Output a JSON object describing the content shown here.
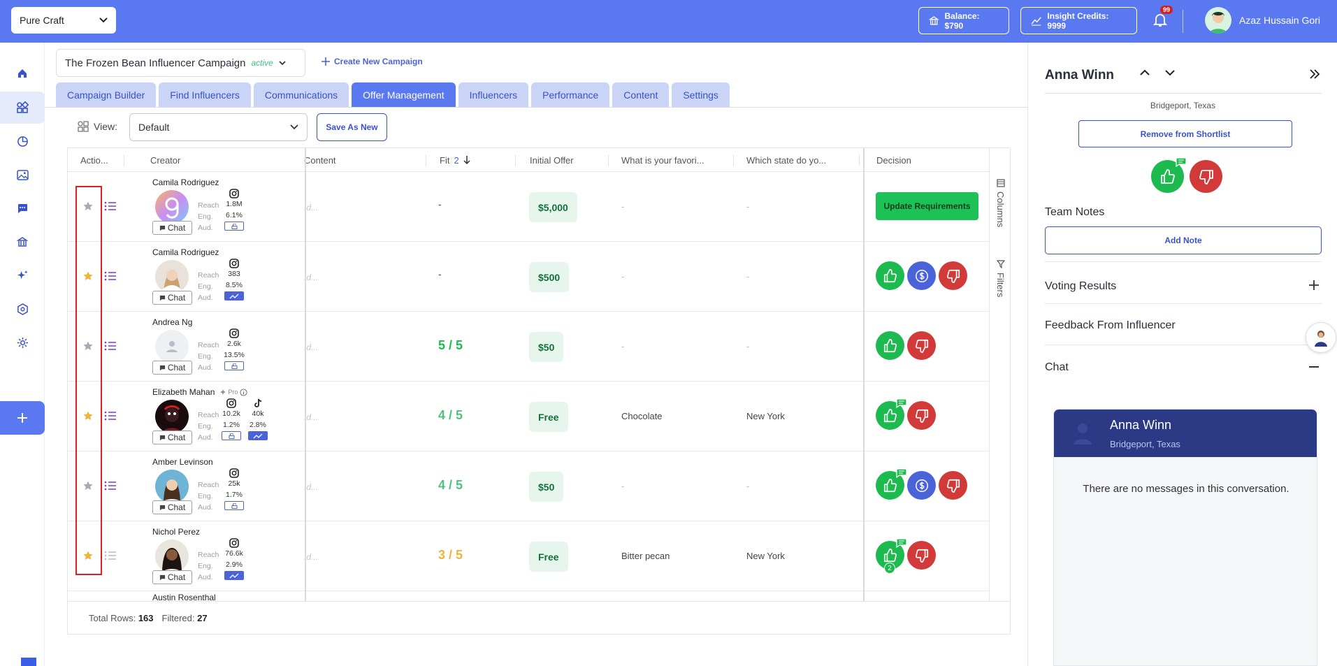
{
  "topbar": {
    "workspace": "Pure Craft",
    "balance": "Balance: $790",
    "insight_credits": "Insight Credits: 9999",
    "notifications": "99",
    "user_name": "Azaz Hussain Gori"
  },
  "campaign": {
    "name": "The Frozen Bean Influencer Campaign",
    "status": "active",
    "create_new": "Create New Campaign"
  },
  "tabs": [
    "Campaign Builder",
    "Find Influencers",
    "Communications",
    "Offer Management",
    "Influencers",
    "Performance",
    "Content",
    "Settings"
  ],
  "active_tab": "Offer Management",
  "view": {
    "label": "View:",
    "value": "Default",
    "save_as_new": "Save As New"
  },
  "table": {
    "headers": {
      "actions": "Actio...",
      "creator": "Creator",
      "content": "Content",
      "fit": "Fit",
      "fit_sort_index": "2",
      "initial_offer": "Initial Offer",
      "q1": "What is your favori...",
      "q2": "Which state do yo...",
      "decision": "Decision"
    },
    "metric_labels": {
      "reach": "Reach",
      "eng": "Eng.",
      "aud": "Aud."
    },
    "chat_label": "Chat",
    "content_placeholder": "Id...",
    "pro_label": "Pro",
    "update_requirements": "Update Requirements",
    "rows": [
      {
        "name": "Camila Rodriguez",
        "starred": false,
        "reach": "1.8M",
        "eng": "6.1%",
        "fit": "-",
        "offer": "$5,000",
        "q1": "-",
        "q2": "-",
        "decision": "update"
      },
      {
        "name": "Camila Rodriguez",
        "starred": true,
        "reach": "383",
        "eng": "8.5%",
        "fit": "-",
        "offer": "$500",
        "q1": "-",
        "q2": "-",
        "decision": "three"
      },
      {
        "name": "Andrea Ng",
        "starred": false,
        "reach": "2.6k",
        "eng": "13.5%",
        "fit": "5 / 5",
        "offer": "$50",
        "q1": "-",
        "q2": "-",
        "decision": "two"
      },
      {
        "name": "Elizabeth Mahan",
        "starred": true,
        "reach": "10.2k",
        "eng": "1.2%",
        "tiktok_reach": "40k",
        "tiktok_eng": "2.8%",
        "fit": "4 / 5",
        "offer": "Free",
        "q1": "Chocolate",
        "q2": "New York",
        "decision": "two-bubble"
      },
      {
        "name": "Amber Levinson",
        "starred": false,
        "reach": "25k",
        "eng": "1.7%",
        "fit": "4 / 5",
        "offer": "$50",
        "q1": "-",
        "q2": "-",
        "decision": "three-bubble"
      },
      {
        "name": "Nichol Perez",
        "starred": true,
        "reach": "76.6k",
        "eng": "2.9%",
        "fit": "3 / 5",
        "offer": "Free",
        "q1": "Bitter pecan",
        "q2": "New York",
        "decision": "two-count",
        "vote_count": "2"
      },
      {
        "name": "Austin Rosenthal"
      }
    ],
    "rail": {
      "columns": "Columns",
      "filters": "Filters"
    },
    "footer": {
      "total_label": "Total Rows:",
      "total": "163",
      "filtered_label": "Filtered:",
      "filtered": "27"
    }
  },
  "right_panel": {
    "name": "Anna Winn",
    "location": "Bridgeport, Texas",
    "remove_btn": "Remove from Shortlist",
    "team_notes": "Team Notes",
    "add_note": "Add Note",
    "voting_results": "Voting Results",
    "feedback": "Feedback From Influencer",
    "chat": "Chat",
    "chat_card": {
      "name": "Anna Winn",
      "location": "Bridgeport, Texas",
      "empty": "There are no messages in this conversation."
    }
  },
  "colors": {
    "brand": "#5a78f0",
    "approve": "#1dba4f",
    "reject": "#d23a3a",
    "negotiate": "#4a63d8"
  }
}
